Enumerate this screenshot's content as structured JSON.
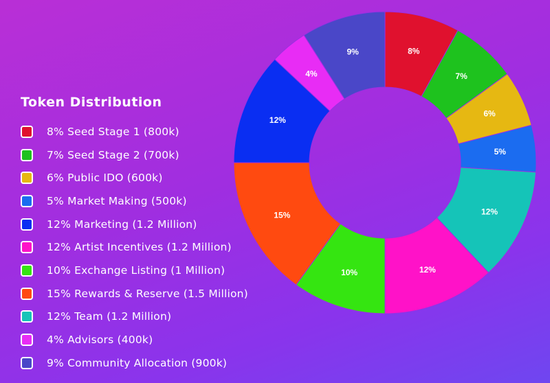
{
  "chart_data": {
    "type": "pie",
    "title": "Token Distribution",
    "donut": true,
    "legend_placement": "left",
    "slices": [
      {
        "value": 8,
        "label": "8%",
        "legend": "8% Seed Stage 1 (800k)",
        "color": "#e0112e"
      },
      {
        "value": 7,
        "label": "7%",
        "legend": "7% Seed Stage 2 (700k)",
        "color": "#1ec21e"
      },
      {
        "value": 6,
        "label": "6%",
        "legend": "6% Public IDO (600k)",
        "color": "#e6b812"
      },
      {
        "value": 5,
        "label": "5%",
        "legend": "5% Market Making (500k)",
        "color": "#1b6cf0"
      },
      {
        "value": 12,
        "label": "12%",
        "legend": "12% Team (1.2 Million)",
        "color": "#15c4b8"
      },
      {
        "value": 12,
        "label": "12%",
        "legend": "12% Artist Incentives (1.2 Million)",
        "color": "#ff12c8"
      },
      {
        "value": 10,
        "label": "10%",
        "legend": "10% Exchange Listing (1 Million)",
        "color": "#35e511"
      },
      {
        "value": 15,
        "label": "15%",
        "legend": "15% Rewards & Reserve (1.5 Million)",
        "color": "#ff4a10"
      },
      {
        "value": 12,
        "label": "12%",
        "legend": "12% Marketing (1.2 Million)",
        "color": "#0a2ef2"
      },
      {
        "value": 4,
        "label": "4%",
        "legend": "4% Advisors (400k)",
        "color": "#e82cf5"
      },
      {
        "value": 9,
        "label": "9%",
        "legend": "9% Community Allocation (900k)",
        "color": "#4a47c8"
      }
    ],
    "legend_order": [
      0,
      1,
      2,
      3,
      8,
      5,
      6,
      7,
      4,
      9,
      10
    ]
  }
}
